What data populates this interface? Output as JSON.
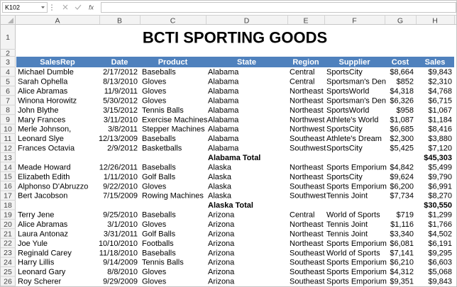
{
  "formula_bar": {
    "name_box": "K102",
    "fx_label": "fx"
  },
  "columns": [
    "A",
    "B",
    "C",
    "D",
    "E",
    "F",
    "G",
    "H"
  ],
  "row_numbers": [
    1,
    2,
    3,
    4,
    5,
    6,
    7,
    8,
    9,
    10,
    11,
    12,
    13,
    14,
    15,
    16,
    17,
    18,
    19,
    20,
    21,
    22,
    23,
    24,
    25,
    26
  ],
  "title": "BCTI SPORTING GOODS",
  "table": {
    "header": [
      "SalesRep",
      "Date",
      "Product",
      "State",
      "Region",
      "Supplier",
      "Cost",
      "Sales"
    ],
    "rows": [
      [
        "Michael Dumble",
        "2/17/2012",
        "Baseballs",
        "Alabama",
        "Central",
        "SportsCity",
        "$8,664",
        "$9,843"
      ],
      [
        "Sarah Ophella",
        "8/13/2010",
        "Gloves",
        "Alabama",
        "Central",
        "Sportsman's Den",
        "$852",
        "$2,310"
      ],
      [
        "Alice Abramas",
        "11/9/2011",
        "Gloves",
        "Alabama",
        "Northeast",
        "SportsWorld",
        "$4,318",
        "$4,768"
      ],
      [
        "Winona Horowitz",
        "5/30/2012",
        "Gloves",
        "Alabama",
        "Northeast",
        "Sportsman's Den",
        "$6,326",
        "$6,715"
      ],
      [
        "John Blythe",
        "3/15/2012",
        "Tennis Balls",
        "Alabama",
        "Northeast",
        "SportsWorld",
        "$958",
        "$1,067"
      ],
      [
        "Mary Frances",
        "3/11/2010",
        "Exercise Machines",
        "Alabama",
        "Northwest",
        "Athlete's World",
        "$1,087",
        "$1,184"
      ],
      [
        "Merle Johnson,",
        "3/8/2011",
        "Stepper Machines",
        "Alabama",
        "Northwest",
        "SportsCity",
        "$6,685",
        "$8,416"
      ],
      [
        "Leonard Slye",
        "12/13/2009",
        "Baseballs",
        "Alabama",
        "Southeast",
        "Athlete's Dream",
        "$2,300",
        "$3,880"
      ],
      [
        "Frances Octavia",
        "2/9/2012",
        "Basketballs",
        "Alabama",
        "Southwest",
        "SportsCity",
        "$5,425",
        "$7,120"
      ],
      [
        null,
        null,
        null,
        "Alabama Total",
        null,
        null,
        null,
        "$45,303"
      ],
      [
        "Meade Howard",
        "12/26/2011",
        "Baseballs",
        "Alaska",
        "Northeast",
        "Sports Emporium",
        "$4,842",
        "$5,499"
      ],
      [
        "Elizabeth Edith",
        "1/11/2010",
        "Golf Balls",
        "Alaska",
        "Northeast",
        "SportsCity",
        "$9,624",
        "$9,790"
      ],
      [
        "Alphonso D'Abruzzo",
        "9/22/2010",
        "Gloves",
        "Alaska",
        "Southeast",
        "Sports Emporium",
        "$6,200",
        "$6,991"
      ],
      [
        "Bert Jacobson",
        "7/15/2009",
        "Rowing Machines",
        "Alaska",
        "Southwest",
        "Tennis Joint",
        "$7,734",
        "$8,270"
      ],
      [
        null,
        null,
        null,
        "Alaska Total",
        null,
        null,
        null,
        "$30,550"
      ],
      [
        "Terry Jene",
        "9/25/2010",
        "Baseballs",
        "Arizona",
        "Central",
        "World of Sports",
        "$719",
        "$1,299"
      ],
      [
        "Alice Abramas",
        "3/1/2010",
        "Gloves",
        "Arizona",
        "Northeast",
        "Tennis Joint",
        "$1,116",
        "$1,766"
      ],
      [
        "Laura Antonaz",
        "3/31/2011",
        "Golf Balls",
        "Arizona",
        "Northeast",
        "Tennis Joint",
        "$3,340",
        "$4,502"
      ],
      [
        "Joe Yule",
        "10/10/2010",
        "Footballs",
        "Arizona",
        "Northeast",
        "Sports Emporium",
        "$6,081",
        "$6,191"
      ],
      [
        "Reginald Carey",
        "11/18/2010",
        "Baseballs",
        "Arizona",
        "Southeast",
        "World of Sports",
        "$7,141",
        "$9,295"
      ],
      [
        "Harry Lillis",
        "9/14/2009",
        "Tennis Balls",
        "Arizona",
        "Southeast",
        "Sports Emporium",
        "$6,210",
        "$6,603"
      ],
      [
        "Leonard Gary",
        "8/8/2010",
        "Gloves",
        "Arizona",
        "Southeast",
        "Sports Emporium",
        "$4,312",
        "$5,068"
      ],
      [
        "Roy Scherer",
        "9/29/2009",
        "Gloves",
        "Arizona",
        "Southeast",
        "Sports Emporium",
        "$9,351",
        "$9,843"
      ]
    ]
  }
}
